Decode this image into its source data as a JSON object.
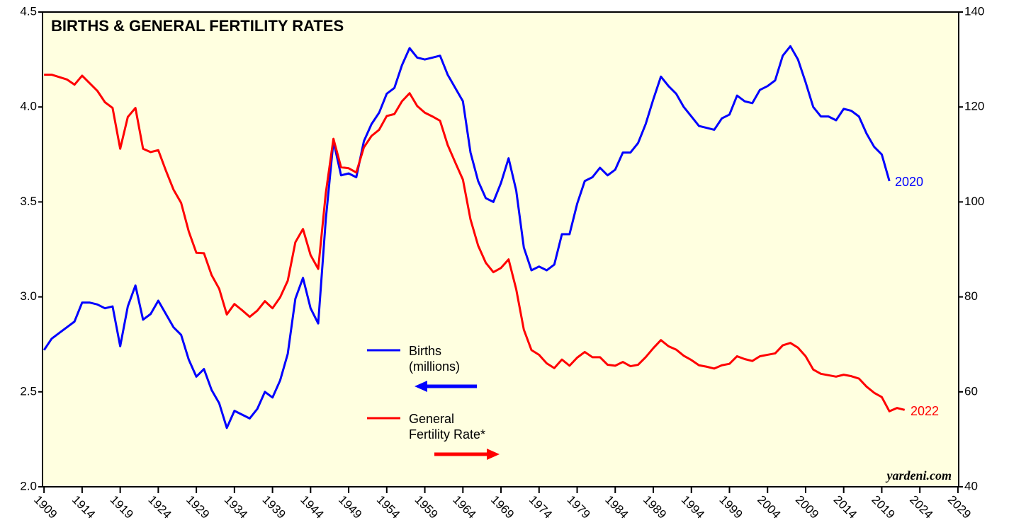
{
  "chart_data": {
    "type": "line",
    "title": "BIRTHS & GENERAL FERTILITY RATES",
    "x": [
      1909,
      1910,
      1911,
      1912,
      1913,
      1914,
      1915,
      1916,
      1917,
      1918,
      1919,
      1920,
      1921,
      1922,
      1923,
      1924,
      1925,
      1926,
      1927,
      1928,
      1929,
      1930,
      1931,
      1932,
      1933,
      1934,
      1935,
      1936,
      1937,
      1938,
      1939,
      1940,
      1941,
      1942,
      1943,
      1944,
      1945,
      1946,
      1947,
      1948,
      1949,
      1950,
      1951,
      1952,
      1953,
      1954,
      1955,
      1956,
      1957,
      1958,
      1959,
      1960,
      1961,
      1962,
      1963,
      1964,
      1965,
      1966,
      1967,
      1968,
      1969,
      1970,
      1971,
      1972,
      1973,
      1974,
      1975,
      1976,
      1977,
      1978,
      1979,
      1980,
      1981,
      1982,
      1983,
      1984,
      1985,
      1986,
      1987,
      1988,
      1989,
      1990,
      1991,
      1992,
      1993,
      1994,
      1995,
      1996,
      1997,
      1998,
      1999,
      2000,
      2001,
      2002,
      2003,
      2004,
      2005,
      2006,
      2007,
      2008,
      2009,
      2010,
      2011,
      2012,
      2013,
      2014,
      2015,
      2016,
      2017,
      2018,
      2019,
      2020,
      2021,
      2022
    ],
    "series": [
      {
        "name": "Births (millions)",
        "color": "#0000ff",
        "axis": "y",
        "values": [
          2.72,
          2.78,
          2.81,
          2.84,
          2.87,
          2.97,
          2.97,
          2.96,
          2.94,
          2.95,
          2.74,
          2.95,
          3.06,
          2.88,
          2.91,
          2.98,
          2.91,
          2.84,
          2.8,
          2.67,
          2.58,
          2.62,
          2.51,
          2.44,
          2.31,
          2.4,
          2.38,
          2.36,
          2.41,
          2.5,
          2.47,
          2.56,
          2.7,
          2.99,
          3.1,
          2.94,
          2.86,
          3.41,
          3.82,
          3.64,
          3.65,
          3.63,
          3.82,
          3.91,
          3.97,
          4.07,
          4.1,
          4.22,
          4.31,
          4.26,
          4.25,
          4.26,
          4.27,
          4.17,
          4.1,
          4.03,
          3.76,
          3.61,
          3.52,
          3.5,
          3.6,
          3.73,
          3.56,
          3.26,
          3.14,
          3.16,
          3.14,
          3.17,
          3.33,
          3.33,
          3.49,
          3.61,
          3.63,
          3.68,
          3.64,
          3.67,
          3.76,
          3.76,
          3.81,
          3.91,
          4.04,
          4.16,
          4.11,
          4.07,
          4.0,
          3.95,
          3.9,
          3.89,
          3.88,
          3.94,
          3.96,
          4.06,
          4.03,
          4.02,
          4.09,
          4.11,
          4.14,
          4.27,
          4.32,
          4.25,
          4.13,
          4.0,
          3.95,
          3.95,
          3.93,
          3.99,
          3.98,
          3.95,
          3.86,
          3.79,
          3.75,
          3.61,
          null,
          null
        ]
      },
      {
        "name": "General Fertility Rate*",
        "color": "#ff0000",
        "axis": "y2",
        "values": [
          126.8,
          126.8,
          126.3,
          125.8,
          124.7,
          126.6,
          125.0,
          123.4,
          121.0,
          119.8,
          111.2,
          117.9,
          119.8,
          111.2,
          110.5,
          110.9,
          106.6,
          102.6,
          99.8,
          93.8,
          89.3,
          89.2,
          84.6,
          81.7,
          76.3,
          78.5,
          77.2,
          75.8,
          77.1,
          79.1,
          77.6,
          79.9,
          83.4,
          91.5,
          94.3,
          88.8,
          85.9,
          101.9,
          113.3,
          107.3,
          107.1,
          106.2,
          111.5,
          113.9,
          115.2,
          118.1,
          118.5,
          121.2,
          122.9,
          120.2,
          118.8,
          118.0,
          117.1,
          112.0,
          108.3,
          104.7,
          96.3,
          90.8,
          87.2,
          85.2,
          86.1,
          87.9,
          81.6,
          73.1,
          68.8,
          67.8,
          66.0,
          65.0,
          66.8,
          65.5,
          67.2,
          68.4,
          67.3,
          67.3,
          65.7,
          65.5,
          66.3,
          65.4,
          65.7,
          67.3,
          69.2,
          70.9,
          69.6,
          68.9,
          67.6,
          66.7,
          65.6,
          65.3,
          64.9,
          65.6,
          65.9,
          67.5,
          66.9,
          66.5,
          67.5,
          67.8,
          68.1,
          69.8,
          70.3,
          69.3,
          67.5,
          64.7,
          63.8,
          63.5,
          63.2,
          63.6,
          63.3,
          62.8,
          61.1,
          59.8,
          58.9,
          55.9,
          56.6,
          56.2
        ]
      }
    ],
    "xlim": [
      1908.8,
      2029.1
    ],
    "xticks": [
      1909,
      1914,
      1919,
      1924,
      1929,
      1934,
      1939,
      1944,
      1949,
      1954,
      1959,
      1964,
      1969,
      1974,
      1979,
      1984,
      1989,
      1994,
      1999,
      2004,
      2009,
      2014,
      2019,
      2024,
      2029
    ],
    "ylim": [
      2,
      4.5
    ],
    "yticks": [
      {
        "value": 2,
        "label": "2.0"
      },
      2.5,
      {
        "value": 3,
        "label": "3.0"
      },
      3.5,
      {
        "value": 4,
        "label": "4.0"
      },
      4.5
    ],
    "y2lim": [
      40,
      140
    ],
    "y2ticks": [
      40,
      60,
      80,
      100,
      120,
      140
    ],
    "annotations": [
      "2020",
      "2022",
      "yardeni.com"
    ]
  }
}
